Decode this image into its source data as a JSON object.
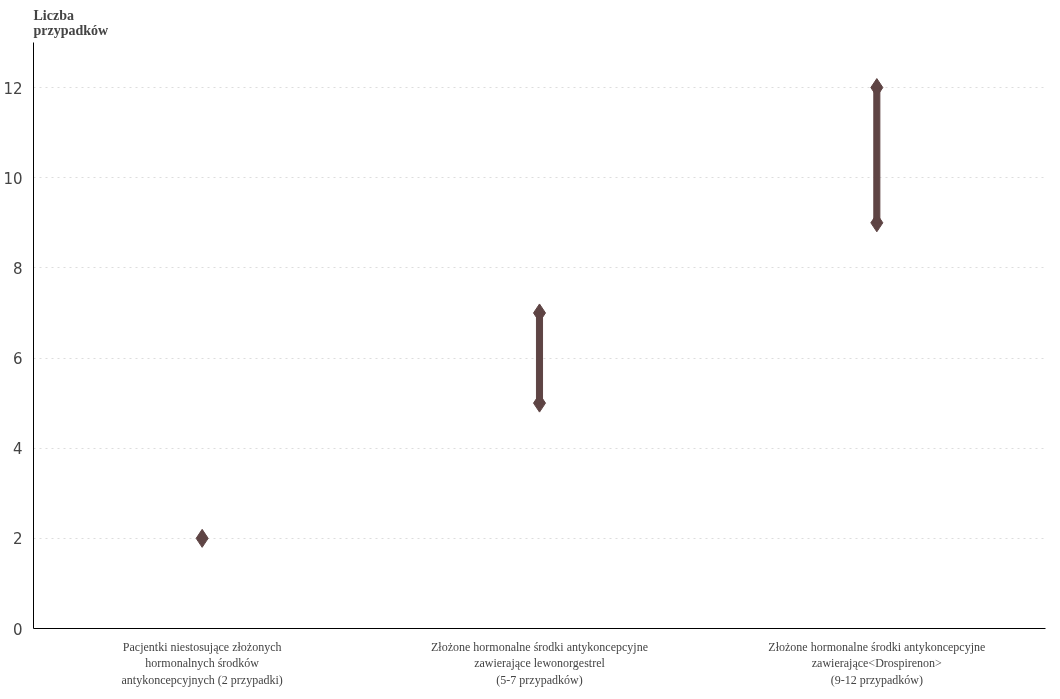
{
  "chart_data": {
    "type": "scatter",
    "ylabel": "Liczba\nprzypadków",
    "categories": [
      "Pacjentki niestosujące złożonych\nhormonalnych środków\nantykoncepcyjnych (2 przypadki)",
      "Złożone hormonalne środki antykoncepcyjne\nzawierające lewonorgestrel\n(5-7 przypadków)",
      "Złożone hormonalne środki antykoncepcyjne\nzawierające<Drospirenon>\n(9-12 przypadków)"
    ],
    "series": [
      {
        "type": "bar",
        "color": "#5e4444",
        "base": [
          null,
          5,
          9
        ],
        "values": [
          null,
          2,
          3
        ]
      },
      {
        "color": "#5e4444",
        "values": [
          2,
          5,
          9
        ]
      },
      {
        "color": "#5e4444",
        "values": [
          null,
          7,
          12
        ]
      }
    ],
    "marker": "diamond",
    "ylim": [
      0,
      13
    ],
    "yticks": [
      0,
      2,
      4,
      6,
      8,
      10,
      12
    ],
    "grid": "y"
  }
}
